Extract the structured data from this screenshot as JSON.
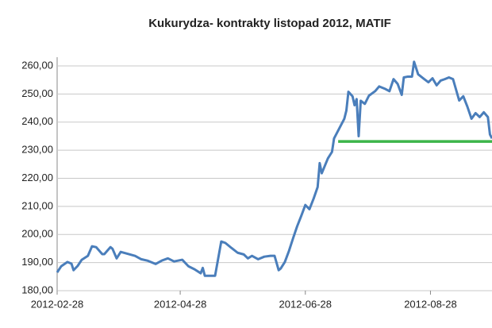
{
  "chart_data": {
    "type": "line",
    "title": "Kukurydza- kontrakty listopad 2012, MATIF",
    "color": "#4a7ebb",
    "x": [
      "2012-02-28",
      "2012-03-01",
      "2012-03-04",
      "2012-03-06",
      "2012-03-07",
      "2012-03-09",
      "2012-03-11",
      "2012-03-14",
      "2012-03-16",
      "2012-03-18",
      "2012-03-21",
      "2012-03-22",
      "2012-03-25",
      "2012-03-26",
      "2012-03-28",
      "2012-03-30",
      "2012-04-02",
      "2012-04-06",
      "2012-04-09",
      "2012-04-12",
      "2012-04-16",
      "2012-04-19",
      "2012-04-22",
      "2012-04-25",
      "2012-04-29",
      "2012-05-02",
      "2012-05-05",
      "2012-05-08",
      "2012-05-09",
      "2012-05-10",
      "2012-05-15",
      "2012-05-18",
      "2012-05-20",
      "2012-05-23",
      "2012-05-26",
      "2012-05-29",
      "2012-05-31",
      "2012-06-02",
      "2012-06-05",
      "2012-06-08",
      "2012-06-11",
      "2012-06-13",
      "2012-06-15",
      "2012-06-16",
      "2012-06-18",
      "2012-06-20",
      "2012-06-22",
      "2012-06-24",
      "2012-06-26",
      "2012-06-28",
      "2012-06-30",
      "2012-07-02",
      "2012-07-04",
      "2012-07-05",
      "2012-07-06",
      "2012-07-09",
      "2012-07-11",
      "2012-07-12",
      "2012-07-15",
      "2012-07-17",
      "2012-07-18",
      "2012-07-19",
      "2012-07-21",
      "2012-07-22",
      "2012-07-23",
      "2012-07-24",
      "2012-07-25",
      "2012-07-27",
      "2012-07-29",
      "2012-08-01",
      "2012-08-03",
      "2012-08-06",
      "2012-08-08",
      "2012-08-10",
      "2012-08-12",
      "2012-08-14",
      "2012-08-15",
      "2012-08-17",
      "2012-08-19",
      "2012-08-20",
      "2012-08-22",
      "2012-08-25",
      "2012-08-27",
      "2012-08-29",
      "2012-08-31",
      "2012-09-02",
      "2012-09-04",
      "2012-09-06",
      "2012-09-08",
      "2012-09-11",
      "2012-09-13",
      "2012-09-15",
      "2012-09-17",
      "2012-09-19",
      "2012-09-21",
      "2012-09-23",
      "2012-09-25",
      "2012-09-26",
      "2012-09-27"
    ],
    "values": [
      186.5,
      188.7,
      190.2,
      189.6,
      187.3,
      188.8,
      191.0,
      192.4,
      195.8,
      195.5,
      193.0,
      193.0,
      195.5,
      194.9,
      191.5,
      193.8,
      193.2,
      192.4,
      191.2,
      190.7,
      189.5,
      190.7,
      191.5,
      190.4,
      191.0,
      188.7,
      187.6,
      186.2,
      188.1,
      185.3,
      185.3,
      197.5,
      197.0,
      195.2,
      193.5,
      192.9,
      191.5,
      192.4,
      191.2,
      192.1,
      192.4,
      192.4,
      187.3,
      187.9,
      190.2,
      194.1,
      198.6,
      202.9,
      206.6,
      210.5,
      209.0,
      212.7,
      216.9,
      225.4,
      221.8,
      227.1,
      229.4,
      234.2,
      238.4,
      241.2,
      244.1,
      250.8,
      249.2,
      246.0,
      248.2,
      235.0,
      247.6,
      246.5,
      249.4,
      251.0,
      252.7,
      251.8,
      251.0,
      255.3,
      253.6,
      249.7,
      255.9,
      256.2,
      256.2,
      261.5,
      257.0,
      255.3,
      254.2,
      255.6,
      253.1,
      254.8,
      255.3,
      255.9,
      255.3,
      247.7,
      249.2,
      245.5,
      241.2,
      243.2,
      241.8,
      243.5,
      241.8,
      235.6,
      234.2
    ],
    "reference_line": {
      "value": 233.1,
      "x": [
        "2012-07-14",
        "2012-09-27"
      ],
      "color": "#3cb54a"
    },
    "xlim": [
      "2012-02-28",
      "2012-09-27"
    ],
    "xticks": [
      "2012-02-28",
      "2012-04-28",
      "2012-06-28",
      "2012-08-28"
    ],
    "ylim": [
      180,
      263
    ],
    "yticks": [
      {
        "value": 180,
        "label": "180,00"
      },
      {
        "value": 190,
        "label": "190,00"
      },
      {
        "value": 200,
        "label": "200,00"
      },
      {
        "value": 210,
        "label": "210,00"
      },
      {
        "value": 220,
        "label": "220,00"
      },
      {
        "value": 230,
        "label": "230,00"
      },
      {
        "value": 240,
        "label": "240,00"
      },
      {
        "value": 250,
        "label": "250,00"
      },
      {
        "value": 260,
        "label": "260,00"
      }
    ],
    "grid": true
  }
}
